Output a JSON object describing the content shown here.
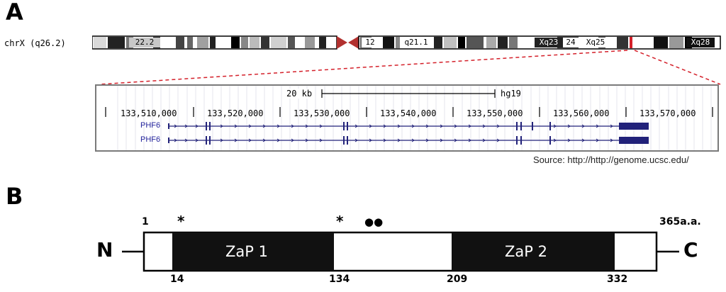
{
  "panel_a": {
    "letter": "A",
    "chromosome_label": "chrX (q26.2)",
    "bands": [
      "22.2",
      "12",
      "q21.1",
      "Xq23",
      "24",
      "Xq25",
      "Xq28"
    ],
    "browser": {
      "scale_label": "20 kb",
      "assembly": "hg19",
      "coordinates": [
        "133,510,000",
        "133,520,000",
        "133,530,000",
        "133,540,000",
        "133,550,000",
        "133,560,000",
        "133,570,000"
      ],
      "genes": [
        "PHF6",
        "PHF6"
      ]
    },
    "source": "Source: http://http://genome.ucsc.edu/"
  },
  "panel_b": {
    "letter": "B",
    "n_terminus": "N",
    "c_terminus": "C",
    "start_label": "1",
    "end_label": "365a.a.",
    "domains": [
      {
        "name": "ZaP 1",
        "start": "14",
        "end": "134"
      },
      {
        "name": "ZaP 2",
        "start": "209",
        "end": "332"
      }
    ],
    "markers": {
      "star1": "*",
      "star2": "*",
      "dots": "●●"
    }
  },
  "colors": {
    "accent_red": "#d4202a",
    "gene_blue": "#22227a",
    "domain_fill": "#111111"
  }
}
